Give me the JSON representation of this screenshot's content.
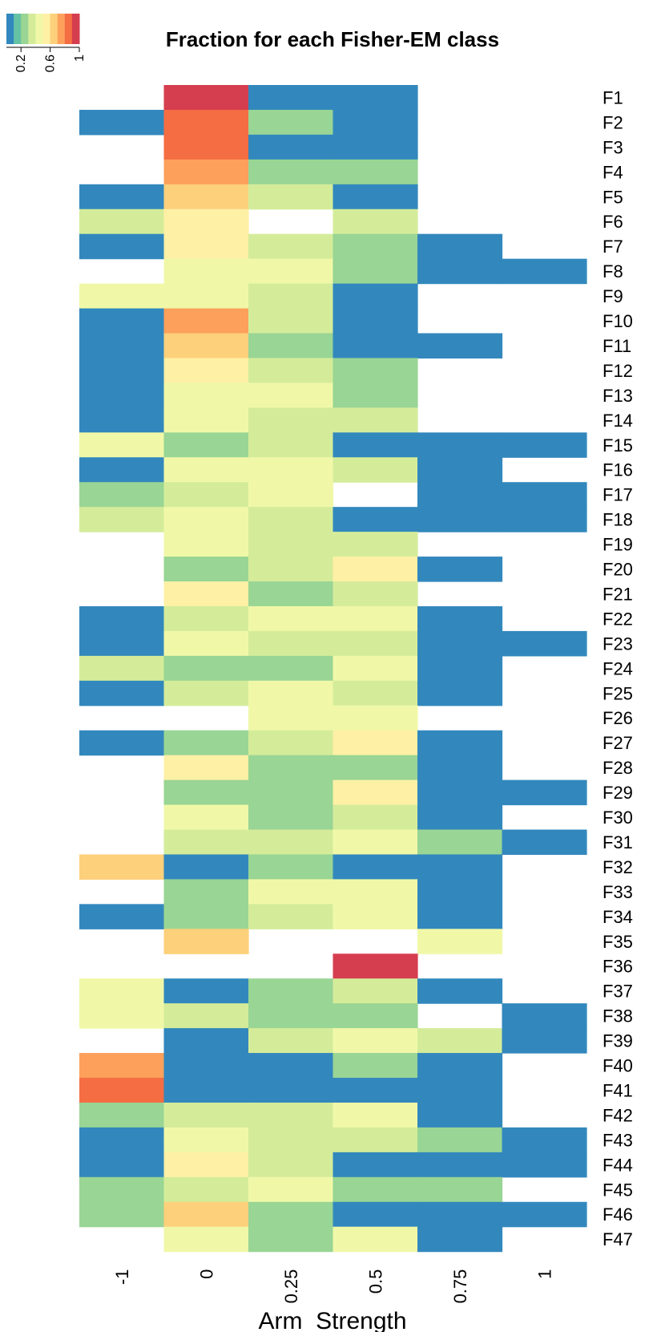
{
  "chart_data": {
    "type": "heatmap",
    "title": "Fraction for each Fisher-EM class",
    "xlabel": "Arm_Strength",
    "columns": [
      "-1",
      "0",
      "0.25",
      "0.5",
      "0.75",
      "1"
    ],
    "rows": [
      "F1",
      "F2",
      "F3",
      "F4",
      "F5",
      "F6",
      "F7",
      "F8",
      "F9",
      "F10",
      "F11",
      "F12",
      "F13",
      "F14",
      "F15",
      "F16",
      "F17",
      "F18",
      "F19",
      "F20",
      "F21",
      "F22",
      "F23",
      "F24",
      "F25",
      "F26",
      "F27",
      "F28",
      "F29",
      "F30",
      "F31",
      "F32",
      "F33",
      "F34",
      "F35",
      "F36",
      "F37",
      "F38",
      "F39",
      "F40",
      "F41",
      "F42",
      "F43",
      "F44",
      "F45",
      "F46",
      "F47"
    ],
    "values": [
      [
        null,
        1.0,
        0.05,
        0.05,
        null,
        null
      ],
      [
        0.05,
        0.85,
        0.2,
        0.05,
        null,
        null
      ],
      [
        null,
        0.85,
        0.05,
        0.05,
        null,
        null
      ],
      [
        null,
        0.75,
        0.2,
        0.2,
        null,
        null
      ],
      [
        0.05,
        0.65,
        0.3,
        0.05,
        null,
        null
      ],
      [
        0.3,
        0.55,
        null,
        0.3,
        null,
        null
      ],
      [
        0.05,
        0.55,
        0.3,
        0.2,
        0.05,
        null
      ],
      [
        null,
        0.45,
        0.4,
        0.2,
        0.05,
        0.05
      ],
      [
        0.4,
        0.4,
        0.3,
        0.05,
        null,
        null
      ],
      [
        0.05,
        0.75,
        0.3,
        0.05,
        null,
        null
      ],
      [
        0.05,
        0.65,
        0.2,
        0.05,
        0.05,
        null
      ],
      [
        0.05,
        0.55,
        0.3,
        0.2,
        null,
        null
      ],
      [
        0.05,
        0.4,
        0.4,
        0.2,
        null,
        null
      ],
      [
        0.05,
        0.45,
        0.3,
        0.3,
        null,
        null
      ],
      [
        0.45,
        0.2,
        0.3,
        0.05,
        0.05,
        0.05
      ],
      [
        0.05,
        0.4,
        0.4,
        0.3,
        0.05,
        null
      ],
      [
        0.2,
        0.3,
        0.4,
        null,
        0.05,
        0.05
      ],
      [
        0.3,
        0.45,
        0.3,
        0.05,
        0.05,
        0.05
      ],
      [
        null,
        0.45,
        0.3,
        0.3,
        null,
        null
      ],
      [
        null,
        0.2,
        0.3,
        0.55,
        0.05,
        null
      ],
      [
        null,
        0.55,
        0.2,
        0.3,
        null,
        null
      ],
      [
        0.05,
        0.3,
        0.4,
        0.4,
        0.05,
        null
      ],
      [
        0.05,
        0.4,
        0.3,
        0.3,
        0.05,
        0.05
      ],
      [
        0.3,
        0.2,
        0.2,
        0.4,
        0.05,
        null
      ],
      [
        0.05,
        0.3,
        0.4,
        0.3,
        0.05,
        null
      ],
      [
        null,
        null,
        0.45,
        0.45,
        null,
        null
      ],
      [
        0.05,
        0.2,
        0.3,
        0.55,
        0.05,
        null
      ],
      [
        null,
        0.55,
        0.2,
        0.2,
        0.05,
        null
      ],
      [
        null,
        0.2,
        0.2,
        0.55,
        0.05,
        0.05
      ],
      [
        null,
        0.4,
        0.2,
        0.3,
        0.05,
        null
      ],
      [
        null,
        0.3,
        0.3,
        0.4,
        0.2,
        0.05
      ],
      [
        0.65,
        0.05,
        0.2,
        0.05,
        0.05,
        null
      ],
      [
        null,
        0.2,
        0.4,
        0.4,
        0.05,
        null
      ],
      [
        0.05,
        0.2,
        0.3,
        0.45,
        0.05,
        null
      ],
      [
        null,
        0.65,
        null,
        null,
        0.4,
        null
      ],
      [
        null,
        null,
        null,
        1.0,
        null,
        null
      ],
      [
        0.45,
        0.05,
        0.2,
        0.3,
        0.05,
        null
      ],
      [
        0.45,
        0.3,
        0.2,
        0.2,
        null,
        0.05
      ],
      [
        null,
        0.05,
        0.3,
        0.45,
        0.3,
        0.05
      ],
      [
        0.75,
        0.05,
        0.05,
        0.2,
        0.05,
        null
      ],
      [
        0.85,
        0.05,
        0.05,
        0.05,
        0.05,
        null
      ],
      [
        0.2,
        0.3,
        0.3,
        0.4,
        0.05,
        null
      ],
      [
        0.05,
        0.4,
        0.3,
        0.3,
        0.2,
        0.05
      ],
      [
        0.05,
        0.55,
        0.3,
        0.05,
        0.05,
        0.05
      ],
      [
        0.2,
        0.3,
        0.4,
        0.2,
        0.2,
        null
      ],
      [
        0.2,
        0.65,
        0.2,
        0.05,
        0.05,
        0.05
      ],
      [
        null,
        0.45,
        0.2,
        0.4,
        0.05,
        null
      ]
    ],
    "color_scale": [
      "#3288bd",
      "#66c2a5",
      "#99d594",
      "#d4ec9a",
      "#f0f8a8",
      "#fef0a5",
      "#fdd07b",
      "#fca05b",
      "#f46d43",
      "#d53e4f"
    ],
    "value_range": [
      0,
      1
    ],
    "legend": {
      "placement": "top-left",
      "tick_labels": [
        "0.2",
        "0.6",
        "1"
      ],
      "tick_values": [
        0.2,
        0.6,
        1.0
      ]
    },
    "grid": false
  }
}
